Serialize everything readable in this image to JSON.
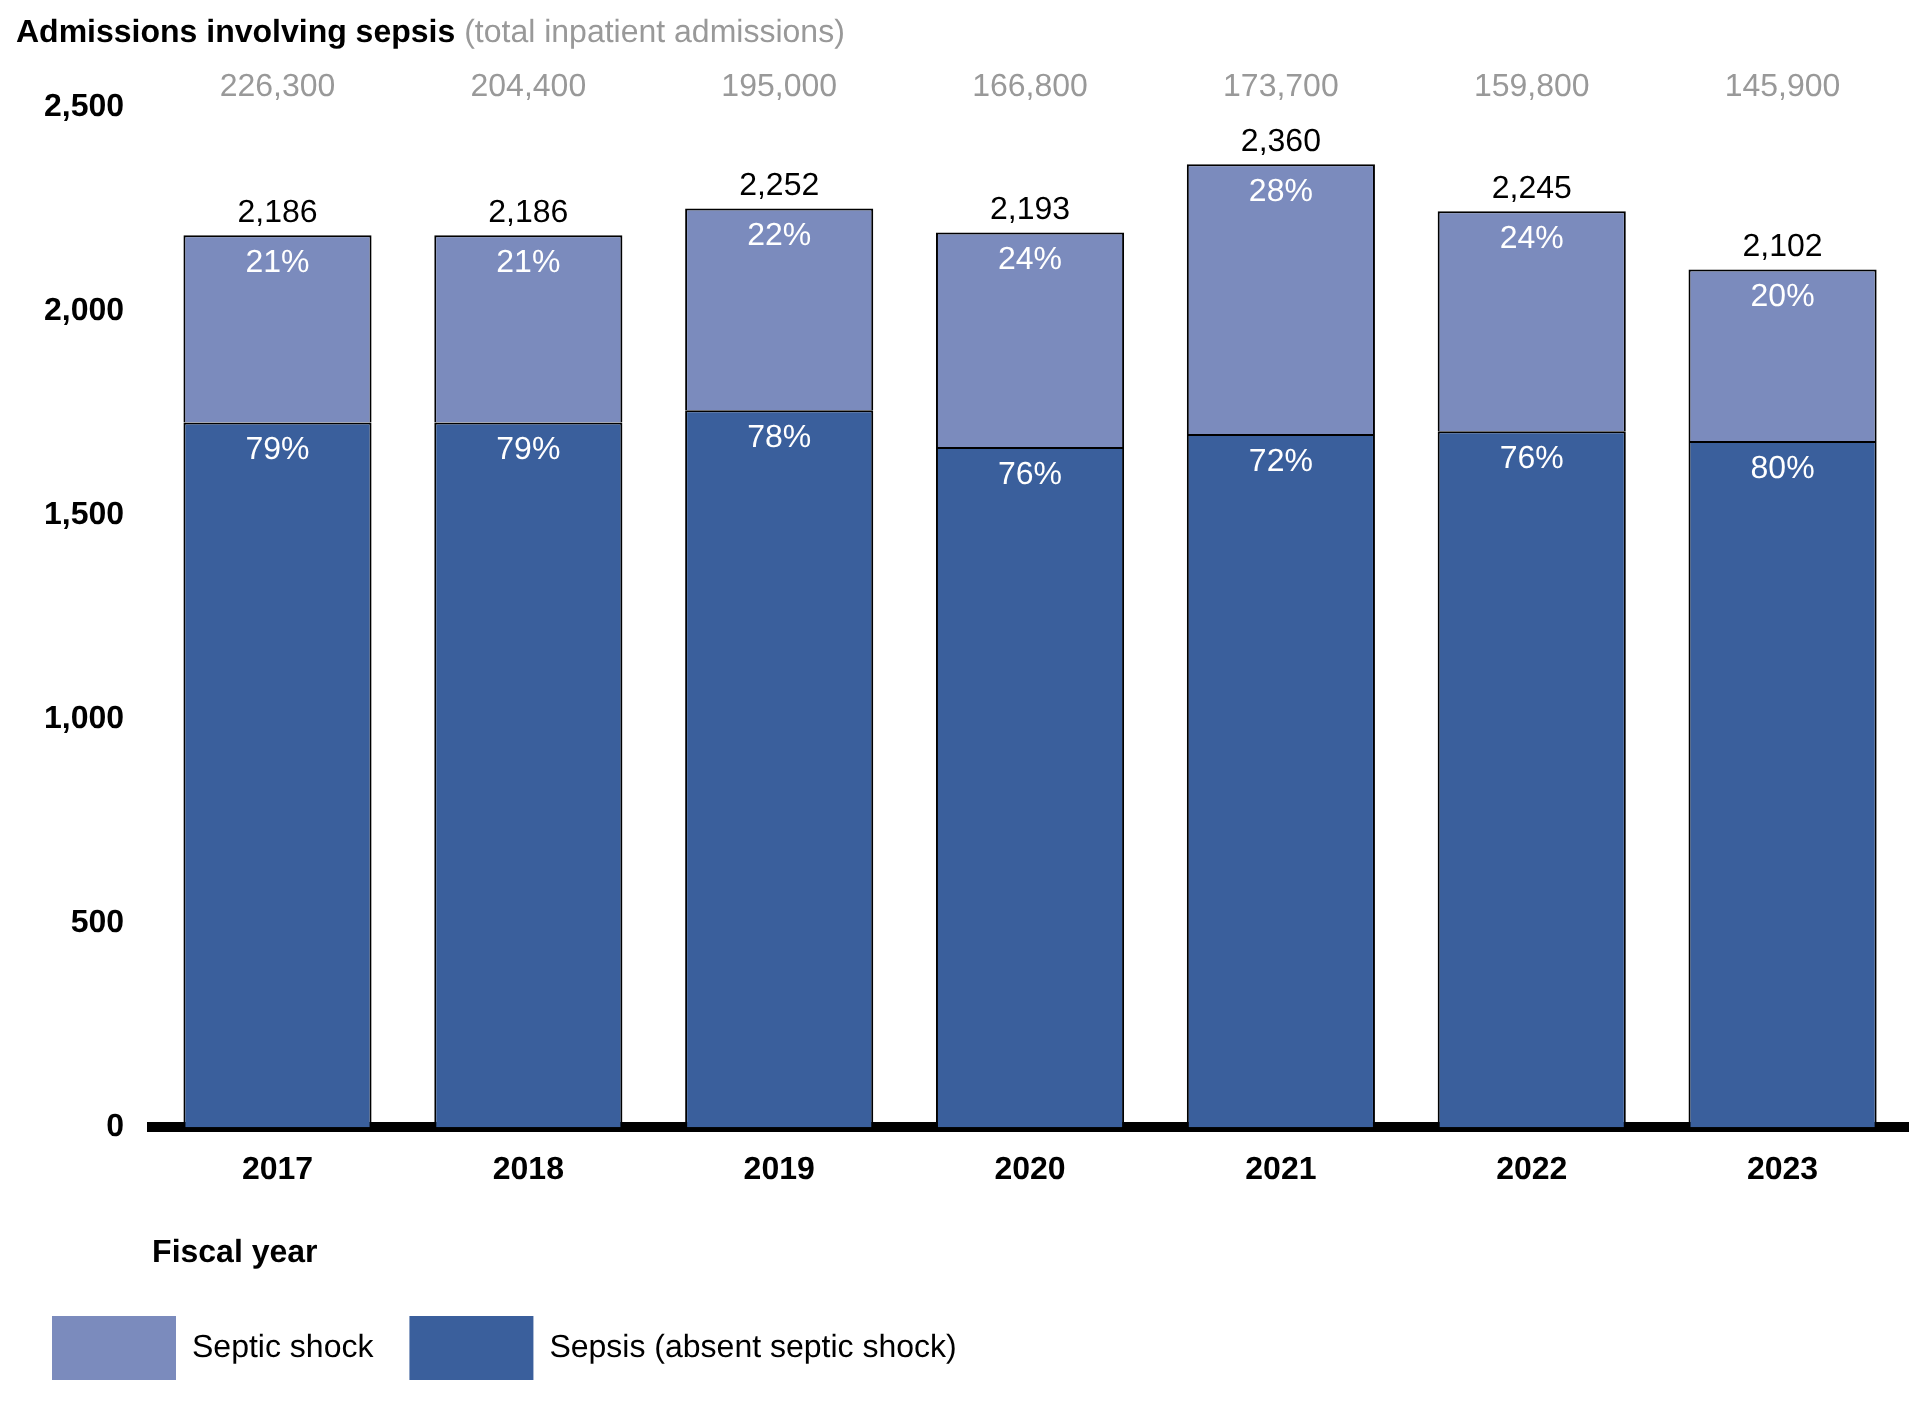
{
  "chart_data": {
    "type": "bar",
    "title": "Admissions involving sepsis",
    "subtitle": "(total inpatient admissions)",
    "xlabel": "Fiscal year",
    "categories": [
      "2017",
      "2018",
      "2019",
      "2020",
      "2021",
      "2022",
      "2023"
    ],
    "stacked": true,
    "series": [
      {
        "name": "Sepsis (absent septic shock)",
        "color": "#3a5f9c",
        "values": [
          1727,
          1727,
          1757,
          1667,
          1699,
          1706,
          1682
        ]
      },
      {
        "name": "Septic shock",
        "color": "#7b8bbd",
        "values": [
          459,
          459,
          495,
          526,
          661,
          539,
          420
        ]
      }
    ],
    "totals": [
      "2,186",
      "2,186",
      "2,252",
      "2,193",
      "2,360",
      "2,245",
      "2,102"
    ],
    "annotations": [
      "226,300",
      "204,400",
      "195,000",
      "166,800",
      "173,700",
      "159,800",
      "145,900",
      {
        "text": "79%",
        "x": "2017",
        "y": 1727
      },
      {
        "text": "79%",
        "x": "2018",
        "y": 1727
      },
      {
        "text": "78%",
        "x": "2019",
        "y": 1757
      },
      {
        "text": "76%",
        "x": "2020",
        "y": 1667
      },
      {
        "text": "72%",
        "x": "2021",
        "y": 1699
      },
      {
        "text": "76%",
        "x": "2022",
        "y": 1706
      },
      {
        "text": "80%",
        "x": "2023",
        "y": 1682
      },
      {
        "text": "21%",
        "x": "2017",
        "y": 2186
      },
      {
        "text": "21%",
        "x": "2018",
        "y": 2186
      },
      {
        "text": "22%",
        "x": "2019",
        "y": 2252
      },
      {
        "text": "24%",
        "x": "2020",
        "y": 2193
      },
      {
        "text": "28%",
        "x": "2021",
        "y": 2360
      },
      {
        "text": "24%",
        "x": "2022",
        "y": 2245
      },
      {
        "text": "20%",
        "x": "2023",
        "y": 2102
      }
    ],
    "ylim": [
      0,
      2500
    ],
    "yticks": [
      0,
      500,
      {
        "value": 1000,
        "label": "1,000"
      },
      {
        "value": 1500,
        "label": "1,500"
      },
      {
        "value": 2000,
        "label": "2,000"
      },
      {
        "value": 2500,
        "label": "2,500"
      }
    ],
    "grid": false,
    "legend": "bottom"
  }
}
